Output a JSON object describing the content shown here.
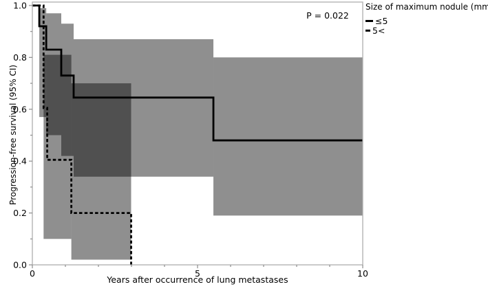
{
  "legend": {
    "title": "Size of maximum nodule (mm)",
    "items": [
      {
        "label": "≤5",
        "style": "solid"
      },
      {
        "label": "5<",
        "style": "dashed"
      }
    ]
  },
  "chart_data": {
    "type": "line",
    "subtype": "kaplan_meier_step_with_ci_bands",
    "title": "",
    "xlabel": "Years after occurrence of lung metastases",
    "ylabel": "Progression-free survival (95% CI)",
    "annotation": "P = 0.022",
    "xlim": [
      0,
      10
    ],
    "ylim": [
      0.0,
      1.0
    ],
    "x_major_ticks": [
      0,
      5,
      10
    ],
    "x_minor_ticks": [
      1,
      2,
      3,
      4,
      6,
      7,
      8,
      9
    ],
    "y_major_ticks": [
      0.0,
      0.2,
      0.4,
      0.6,
      0.8,
      1.0
    ],
    "y_minor_ticks": [
      0.1,
      0.3,
      0.5,
      0.7,
      0.9
    ],
    "grid": "off",
    "legend_position": "outside-top-right",
    "series": [
      {
        "name": "≤5",
        "line": "solid",
        "steps": [
          [
            0,
            1.0
          ],
          [
            0.21,
            0.92
          ],
          [
            0.42,
            0.83
          ],
          [
            0.875,
            0.73
          ],
          [
            1.25,
            0.645
          ],
          [
            5.48,
            0.48
          ]
        ],
        "end_x": 10,
        "ci_intervals": [
          {
            "x0": 0.21,
            "x1": 0.42,
            "lo": 0.57,
            "hi": 0.99
          },
          {
            "x0": 0.42,
            "x1": 0.875,
            "lo": 0.5,
            "hi": 0.97
          },
          {
            "x0": 0.875,
            "x1": 1.25,
            "lo": 0.42,
            "hi": 0.93
          },
          {
            "x0": 1.25,
            "x1": 5.48,
            "lo": 0.34,
            "hi": 0.87
          },
          {
            "x0": 5.48,
            "x1": 10,
            "lo": 0.19,
            "hi": 0.8
          }
        ]
      },
      {
        "name": "5<",
        "line": "dashed",
        "steps": [
          [
            0,
            1.0
          ],
          [
            0.34,
            0.605
          ],
          [
            0.45,
            0.405
          ],
          [
            1.18,
            0.2
          ],
          [
            2.99,
            0.0
          ]
        ],
        "end_x": 2.99,
        "ci_intervals": [
          {
            "x0": 0.34,
            "x1": 1.18,
            "lo": 0.1,
            "hi": 0.81
          },
          {
            "x0": 1.18,
            "x1": 2.99,
            "lo": 0.02,
            "hi": 0.7
          }
        ]
      }
    ],
    "colors": {
      "curve": "#000000",
      "ci_band": "rgba(0,0,0,0.44)",
      "frame": "#aeaeae",
      "tick": "#8c8c8c",
      "text": "#000000"
    }
  }
}
